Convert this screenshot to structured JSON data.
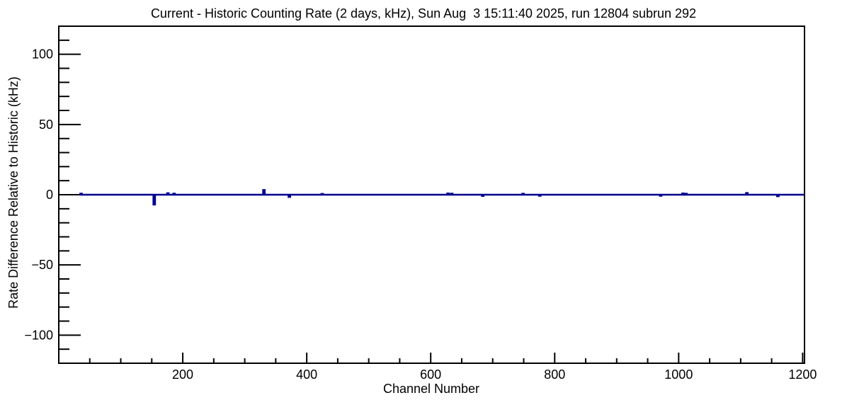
{
  "canvas": {
    "background": "#ffffff"
  },
  "chart_data": {
    "type": "line",
    "title": "Current - Historic Counting Rate (2 days, kHz), Sun Aug  3 15:11:40 2025, run 12804 subrun 292",
    "xlabel": "Channel Number",
    "ylabel": "Rate Difference Relative to Historic (kHz)",
    "x_range": [
      0,
      1203
    ],
    "y_range": [
      -120,
      120
    ],
    "x_major_ticks": [
      200,
      400,
      600,
      800,
      1000,
      1200
    ],
    "x_minor_tick_step": 50,
    "y_major_ticks": [
      -100,
      -50,
      0,
      50,
      100
    ],
    "y_minor_tick_step": 10,
    "grid": false,
    "legend": false,
    "line_color": "#00008f",
    "axis_color": "#000000",
    "data_start_channel": 34,
    "data_end_channel": 1203,
    "series": [
      {
        "name": "rate-difference-vs-channel",
        "baseline": 0,
        "anomalies": [
          [
            36,
            0.8
          ],
          [
            154,
            -7
          ],
          [
            176,
            1.1
          ],
          [
            186,
            0.8
          ],
          [
            331,
            3.4
          ],
          [
            372,
            -1.6
          ],
          [
            425,
            0.6
          ],
          [
            628,
            0.9
          ],
          [
            634,
            0.8
          ],
          [
            684,
            -0.9
          ],
          [
            749,
            0.7
          ],
          [
            776,
            -0.8
          ],
          [
            971,
            -0.8
          ],
          [
            1007,
            0.9
          ],
          [
            1012,
            0.7
          ],
          [
            1110,
            1.2
          ],
          [
            1160,
            -1.1
          ]
        ]
      }
    ]
  }
}
